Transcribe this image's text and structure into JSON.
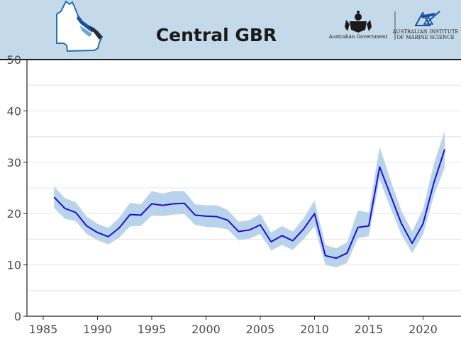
{
  "header": {
    "title": "Central GBR",
    "logo_left_text": "Australian Government",
    "logo_right_line1": "AUSTRALIAN INSTITUTE",
    "logo_right_line2": "OF MARINE SCIENCE",
    "background_color": "#c4d9ea",
    "map_icon": "queensland-map-icon",
    "crest_icon": "coat-of-arms-icon",
    "aims_icon": "aims-logo-icon"
  },
  "colors": {
    "line": "#1a10d8",
    "band": "#b9d4ea",
    "grid": "#e6e6e6",
    "axis": "#222222"
  },
  "chart_data": {
    "type": "line",
    "title": "Central GBR",
    "xlabel": "",
    "ylabel": "",
    "xlim": [
      1983.5,
      2023.5
    ],
    "ylim": [
      0,
      50
    ],
    "x_ticks": [
      1985,
      1990,
      1995,
      2000,
      2005,
      2010,
      2015,
      2020
    ],
    "y_ticks": [
      0,
      10,
      20,
      30,
      40,
      50
    ],
    "grid": true,
    "x": [
      1986,
      1987,
      1988,
      1989,
      1990,
      1991,
      1992,
      1993,
      1994,
      1995,
      1996,
      1997,
      1998,
      1999,
      2000,
      2001,
      2002,
      2003,
      2004,
      2005,
      2006,
      2007,
      2008,
      2009,
      2010,
      2011,
      2012,
      2013,
      2014,
      2015,
      2016,
      2017,
      2018,
      2019,
      2020,
      2021,
      2022
    ],
    "series": [
      {
        "values": [
          23.2,
          21.0,
          20.2,
          17.6,
          16.3,
          15.5,
          17.2,
          19.8,
          19.7,
          21.9,
          21.6,
          21.9,
          22.0,
          19.7,
          19.5,
          19.4,
          18.7,
          16.5,
          16.8,
          17.8,
          14.5,
          15.7,
          14.7,
          17.0,
          20.0,
          11.8,
          11.3,
          12.3,
          17.3,
          17.6,
          29.1,
          23.6,
          18.1,
          14.2,
          18.0,
          26.0,
          32.5
        ],
        "lower": [
          21.1,
          19.0,
          18.5,
          16.0,
          14.8,
          14.0,
          15.3,
          17.5,
          17.6,
          19.6,
          19.5,
          19.8,
          19.9,
          17.8,
          17.4,
          17.3,
          16.9,
          14.8,
          15.1,
          16.0,
          12.8,
          13.9,
          12.9,
          15.0,
          17.5,
          10.0,
          9.5,
          10.4,
          15.2,
          15.6,
          26.6,
          21.1,
          15.9,
          12.3,
          15.9,
          23.4,
          29.0
        ],
        "upper": [
          25.3,
          23.0,
          22.2,
          19.4,
          18.0,
          17.2,
          19.2,
          22.1,
          21.8,
          24.4,
          23.9,
          24.4,
          24.4,
          21.8,
          21.6,
          21.6,
          20.7,
          18.4,
          18.7,
          19.9,
          16.3,
          17.6,
          16.5,
          19.1,
          22.5,
          13.9,
          13.2,
          14.4,
          20.6,
          20.2,
          33.0,
          26.6,
          20.6,
          16.5,
          20.8,
          29.7,
          36.1
        ]
      }
    ]
  }
}
